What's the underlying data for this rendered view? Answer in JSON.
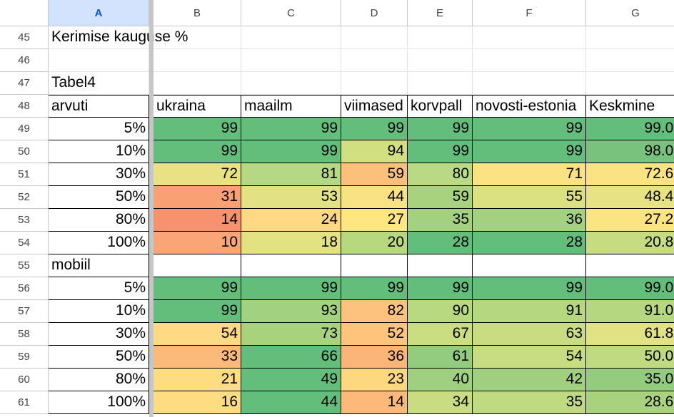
{
  "column_headers": [
    "A",
    "B",
    "C",
    "D",
    "E",
    "F",
    "G"
  ],
  "rows": [
    {
      "number": "45",
      "cells": [
        "Kerimise kauguse %",
        null,
        null,
        null,
        null,
        null,
        null
      ]
    },
    {
      "number": "46",
      "cells": [
        null,
        null,
        null,
        null,
        null,
        null,
        null
      ]
    },
    {
      "number": "47",
      "cells": [
        "Tabel4",
        null,
        null,
        null,
        null,
        null,
        null
      ]
    },
    {
      "number": "48",
      "cells": [
        "arvuti",
        "ukraina",
        "maailm",
        "viimased",
        "korvpall",
        "novosti-estonia",
        "Keskmine"
      ]
    },
    {
      "number": "49",
      "cells": [
        "5%",
        "99",
        "99",
        "99",
        "99",
        "99",
        "99.00"
      ],
      "fills": [
        null,
        "#63be7b",
        "#63be7b",
        "#63be7b",
        "#63be7b",
        "#63be7b",
        "#63be7b"
      ]
    },
    {
      "number": "50",
      "cells": [
        "10%",
        "99",
        "99",
        "94",
        "99",
        "99",
        "98.00"
      ],
      "fills": [
        null,
        "#63be7b",
        "#63be7b",
        "#d2df80",
        "#63be7b",
        "#63be7b",
        "#78c27d"
      ]
    },
    {
      "number": "51",
      "cells": [
        "30%",
        "72",
        "81",
        "59",
        "80",
        "71",
        "72.60"
      ],
      "fills": [
        null,
        "#e9e285",
        "#b4d884",
        "#fdc07c",
        "#b9d985",
        "#fbe383",
        "#fbe383"
      ]
    },
    {
      "number": "52",
      "cells": [
        "50%",
        "31",
        "53",
        "44",
        "59",
        "55",
        "48.40"
      ],
      "fills": [
        null,
        "#f9a074",
        "#e2e183",
        "#f9e283",
        "#a9d27f",
        "#dbe081",
        "#e7e283"
      ]
    },
    {
      "number": "53",
      "cells": [
        "80%",
        "14",
        "24",
        "27",
        "35",
        "36",
        "27.20"
      ],
      "fills": [
        null,
        "#f8926e",
        "#ffd984",
        "#fee783",
        "#a4d17f",
        "#a4d17f",
        "#fbe583"
      ]
    },
    {
      "number": "54",
      "cells": [
        "100%",
        "10",
        "18",
        "20",
        "28",
        "28",
        "20.80"
      ],
      "fills": [
        null,
        "#f9a577",
        "#e3e283",
        "#b8d880",
        "#63be7b",
        "#63be7b",
        "#c7dc81"
      ]
    },
    {
      "number": "55",
      "cells": [
        "mobiil",
        null,
        null,
        null,
        null,
        null,
        null
      ]
    },
    {
      "number": "56",
      "cells": [
        "5%",
        "99",
        "99",
        "99",
        "99",
        "99",
        "99.00"
      ],
      "fills": [
        null,
        "#63be7b",
        "#63be7b",
        "#63be7b",
        "#63be7b",
        "#63be7b",
        "#63be7b"
      ]
    },
    {
      "number": "57",
      "cells": [
        "10%",
        "99",
        "93",
        "82",
        "90",
        "91",
        "91.00"
      ],
      "fills": [
        null,
        "#63be7b",
        "#a2d17f",
        "#fdc27d",
        "#b9d980",
        "#b4d77f",
        "#b4d77f"
      ]
    },
    {
      "number": "58",
      "cells": [
        "30%",
        "54",
        "73",
        "52",
        "67",
        "63",
        "61.80"
      ],
      "fills": [
        null,
        "#ffd983",
        "#a9d27f",
        "#fec47c",
        "#cbdd81",
        "#cadc81",
        "#e0e283"
      ]
    },
    {
      "number": "59",
      "cells": [
        "50%",
        "33",
        "66",
        "36",
        "61",
        "54",
        "50.00"
      ],
      "fills": [
        null,
        "#fbb97a",
        "#63be7b",
        "#fcb579",
        "#93cc7e",
        "#c8dc81",
        "#c0da81"
      ]
    },
    {
      "number": "60",
      "cells": [
        "80%",
        "21",
        "49",
        "23",
        "40",
        "42",
        "35.00"
      ],
      "fills": [
        null,
        "#fedc82",
        "#63be7b",
        "#fed781",
        "#9fd07f",
        "#a0d07f",
        "#93cc7e"
      ]
    },
    {
      "number": "61",
      "cells": [
        "100%",
        "16",
        "44",
        "14",
        "34",
        "35",
        "28.60"
      ],
      "fills": [
        null,
        "#fedc82",
        "#63be7b",
        "#fdb97a",
        "#c9dc81",
        "#c0da81",
        "#a9d27f"
      ]
    }
  ]
}
